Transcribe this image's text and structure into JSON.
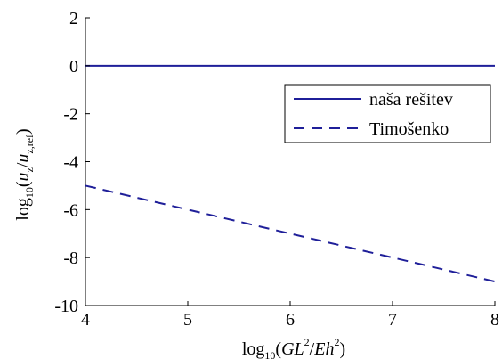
{
  "chart_data": {
    "type": "line",
    "x_ticks": [
      4,
      5,
      6,
      7,
      8
    ],
    "y_ticks": [
      2,
      0,
      -2,
      -4,
      -6,
      -8,
      -10
    ],
    "xlim": [
      4,
      8
    ],
    "ylim": [
      -10,
      2
    ],
    "xlabel": {
      "prefix": "log",
      "sub": "10",
      "open": "(",
      "gl": "GL",
      "sup1": "2",
      "slash": "/",
      "eh": "Eh",
      "sup2": "2",
      "close": ")"
    },
    "ylabel": {
      "prefix": "log",
      "sub": "10",
      "open": "(",
      "u1": "u",
      "u1sub": "z",
      "slash": "/",
      "u2": "u",
      "u2sub": "z,ref",
      "close": ")"
    },
    "series": [
      {
        "name": "naša rešitev",
        "color": "#1f1f99",
        "dash": "solid",
        "x": [
          4,
          8
        ],
        "y": [
          0,
          0
        ]
      },
      {
        "name": "Timošenko",
        "color": "#1f1f99",
        "dash": "dashed",
        "x": [
          4,
          8
        ],
        "y": [
          -5,
          -9
        ]
      }
    ],
    "legend": "top-right",
    "grid": false
  }
}
